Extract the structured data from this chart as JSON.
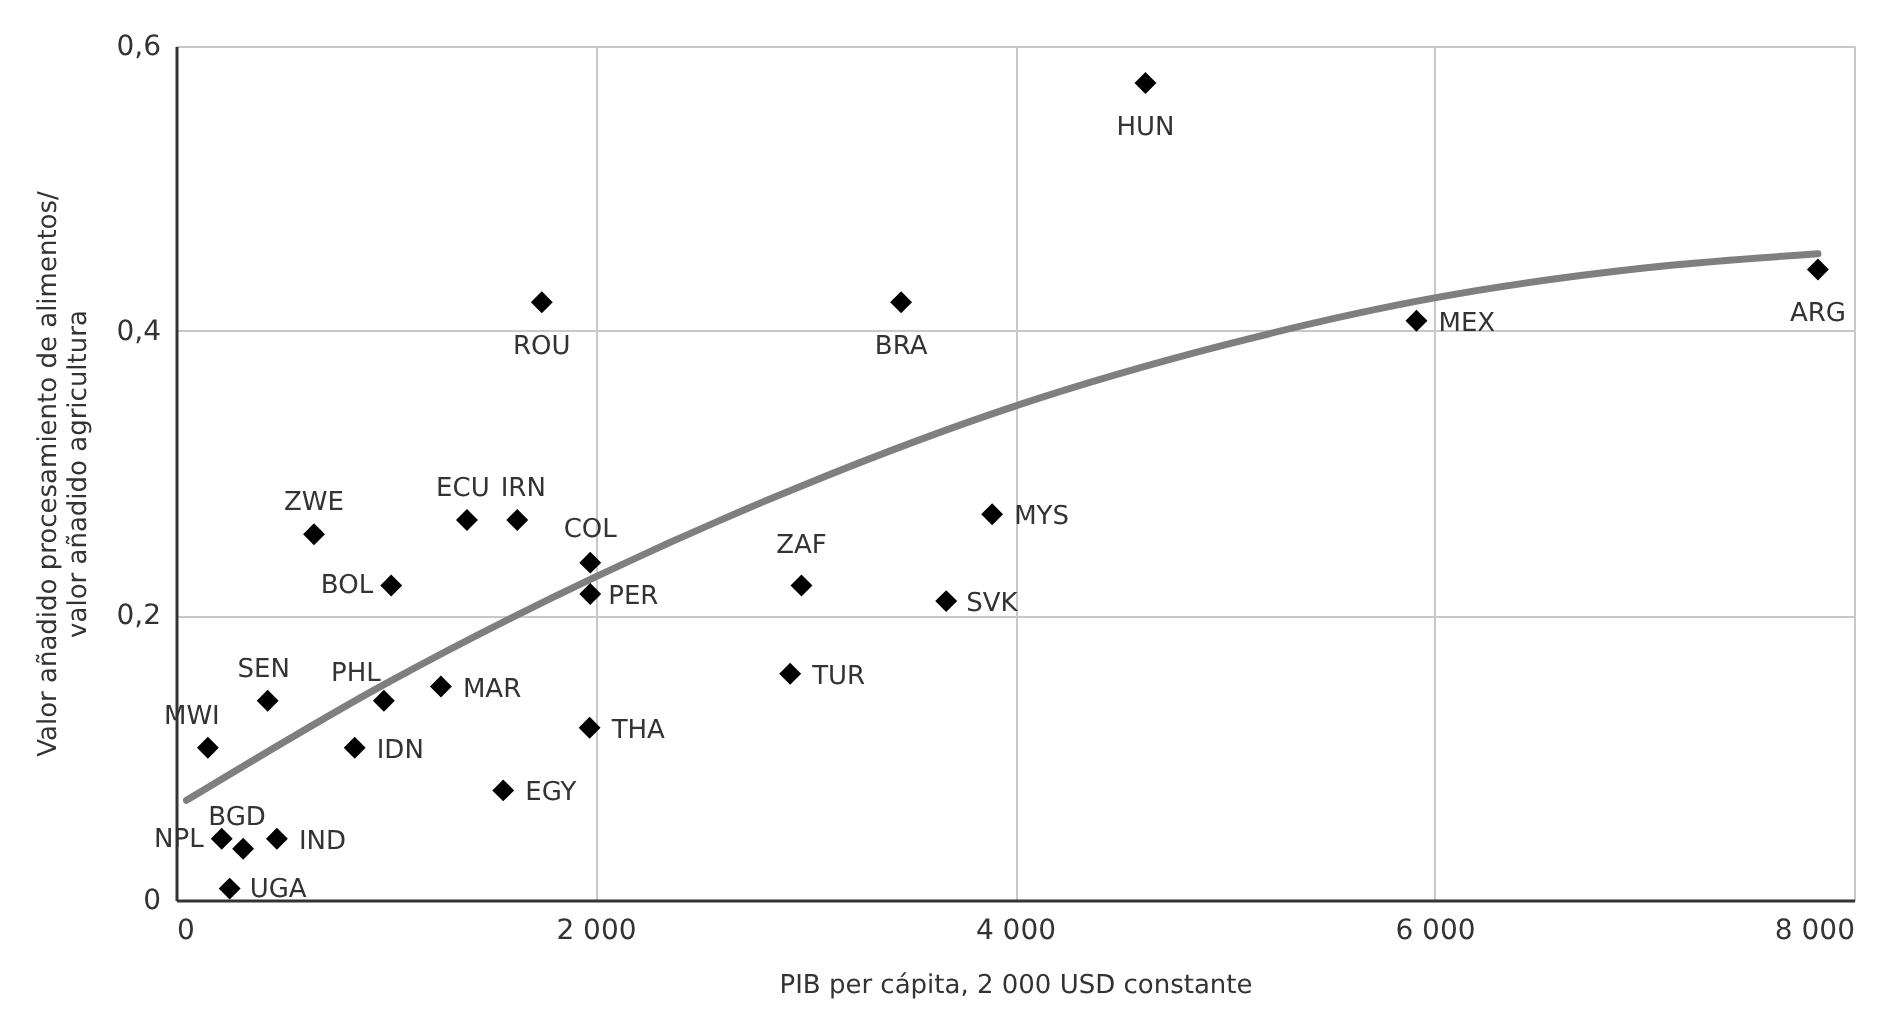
{
  "chart_data": {
    "type": "scatter",
    "xlabel": "PIB per cápita, 2 000 USD constante",
    "ylabel": "Valor añadido procesamiento de alimentos/\nvalor añadido agricultura",
    "xlim": [
      0,
      8000
    ],
    "ylim": [
      0,
      0.6
    ],
    "xticks": [
      0,
      {
        "value": 2000,
        "label": "2 000"
      },
      {
        "value": 4000,
        "label": "4 000"
      },
      {
        "value": 6000,
        "label": "6 000"
      },
      {
        "value": 8000,
        "label": "8 000"
      }
    ],
    "yticks": [
      0,
      {
        "value": 0.2,
        "label": "0,2"
      },
      {
        "value": 0.4,
        "label": "0,4"
      },
      {
        "value": 0.6,
        "label": "0,6"
      }
    ],
    "grid": true,
    "series": [
      {
        "marker": "diamond",
        "color": "#000000",
        "x": [
          658,
          1387,
          1627,
          1975,
          1975,
          1026,
          437,
          991,
          1263,
          152,
          852,
          1972,
          1560,
          218,
          320,
          481,
          256,
          2982,
          2928,
          3672,
          3891,
          3457,
          1744,
          4622,
          5914,
          7828
        ],
        "values": [
          0.257,
          0.267,
          0.267,
          0.237,
          0.215,
          0.221,
          0.14,
          0.14,
          0.15,
          0.107,
          0.107,
          0.121,
          0.077,
          0.043,
          0.036,
          0.043,
          0.008,
          0.221,
          0.159,
          0.21,
          0.271,
          0.42,
          0.42,
          0.574,
          0.407,
          0.443
        ]
      },
      {
        "type": "line",
        "line_style": "solid",
        "color": "#7f7f7f",
        "x": [
          50,
          1000,
          2000,
          3000,
          4000,
          5000,
          6000,
          7000,
          7828
        ],
        "values": [
          0.07,
          0.152,
          0.227,
          0.292,
          0.347,
          0.39,
          0.423,
          0.444,
          0.454
        ]
      }
    ],
    "annotations": [
      {
        "text": "ZWE",
        "x": 658,
        "y": 0.257
      },
      {
        "text": "ECU",
        "x": 1387,
        "y": 0.267
      },
      {
        "text": "IRN",
        "x": 1627,
        "y": 0.267
      },
      {
        "text": "COL",
        "x": 1975,
        "y": 0.237
      },
      {
        "text": "PER",
        "x": 1975,
        "y": 0.215
      },
      {
        "text": "BOL",
        "x": 1026,
        "y": 0.221
      },
      {
        "text": "SEN",
        "x": 437,
        "y": 0.14
      },
      {
        "text": "PHL",
        "x": 991,
        "y": 0.14
      },
      {
        "text": "MAR",
        "x": 1263,
        "y": 0.15
      },
      {
        "text": "MWI",
        "x": 152,
        "y": 0.107
      },
      {
        "text": "IDN",
        "x": 852,
        "y": 0.107
      },
      {
        "text": "THA",
        "x": 1972,
        "y": 0.121
      },
      {
        "text": "EGY",
        "x": 1560,
        "y": 0.077
      },
      {
        "text": "NPL",
        "x": 218,
        "y": 0.043
      },
      {
        "text": "BGD",
        "x": 320,
        "y": 0.036
      },
      {
        "text": "IND",
        "x": 481,
        "y": 0.043
      },
      {
        "text": "UGA",
        "x": 256,
        "y": 0.008
      },
      {
        "text": "ZAF",
        "x": 2982,
        "y": 0.221
      },
      {
        "text": "TUR",
        "x": 2928,
        "y": 0.159
      },
      {
        "text": "SVK",
        "x": 3672,
        "y": 0.21
      },
      {
        "text": "MYS",
        "x": 3891,
        "y": 0.271
      },
      {
        "text": "BRA",
        "x": 3457,
        "y": 0.42
      },
      {
        "text": "ROU",
        "x": 1744,
        "y": 0.42
      },
      {
        "text": "HUN",
        "x": 4622,
        "y": 0.574
      },
      {
        "text": "MEX",
        "x": 5914,
        "y": 0.407
      },
      {
        "text": "ARG",
        "x": 7828,
        "y": 0.443
      }
    ]
  }
}
